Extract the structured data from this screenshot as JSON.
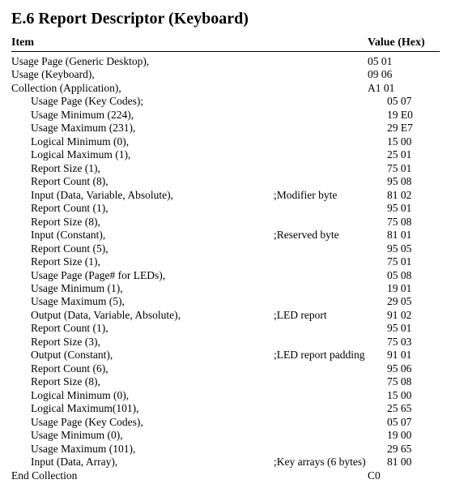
{
  "title": "E.6 Report Descriptor (Keyboard)",
  "header": {
    "item": "Item",
    "value": "Value (Hex)"
  },
  "rows": [
    {
      "indent": 0,
      "item": "Usage Page (Generic Desktop),",
      "comment": "",
      "value": "05 01"
    },
    {
      "indent": 0,
      "item": "Usage (Keyboard),",
      "comment": "",
      "value": "09 06"
    },
    {
      "indent": 0,
      "item": "Collection (Application),",
      "comment": "",
      "value": "A1 01"
    },
    {
      "indent": 2,
      "item": "Usage Page (Key Codes);",
      "comment": "",
      "value": "05 07"
    },
    {
      "indent": 2,
      "item": "Usage Minimum (224),",
      "comment": "",
      "value": "19 E0"
    },
    {
      "indent": 2,
      "item": "Usage Maximum (231),",
      "comment": "",
      "value": "29 E7"
    },
    {
      "indent": 2,
      "item": "Logical Minimum (0),",
      "comment": "",
      "value": "15 00"
    },
    {
      "indent": 2,
      "item": "Logical Maximum (1),",
      "comment": "",
      "value": "25 01"
    },
    {
      "indent": 2,
      "item": "Report Size (1),",
      "comment": "",
      "value": "75 01"
    },
    {
      "indent": 2,
      "item": "Report Count (8),",
      "comment": "",
      "value": "95 08"
    },
    {
      "indent": 2,
      "item": "Input (Data, Variable, Absolute),",
      "comment": ";Modifier byte",
      "value": "81 02"
    },
    {
      "indent": 2,
      "item": "Report Count (1),",
      "comment": "",
      "value": "95 01"
    },
    {
      "indent": 2,
      "item": "Report Size (8),",
      "comment": "",
      "value": "75 08"
    },
    {
      "indent": 2,
      "item": "Input (Constant),",
      "comment": ";Reserved byte",
      "value": "81 01"
    },
    {
      "indent": 2,
      "item": "Report Count (5),",
      "comment": "",
      "value": "95 05"
    },
    {
      "indent": 2,
      "item": "Report Size (1),",
      "comment": "",
      "value": "75 01"
    },
    {
      "indent": 2,
      "item": "Usage Page (Page# for LEDs),",
      "comment": "",
      "value": "05 08"
    },
    {
      "indent": 2,
      "item": "Usage Minimum (1),",
      "comment": "",
      "value": "19 01"
    },
    {
      "indent": 2,
      "item": "Usage Maximum (5),",
      "comment": "",
      "value": "29 05"
    },
    {
      "indent": 2,
      "item": "Output (Data, Variable, Absolute),",
      "comment": ";LED report",
      "value": "91 02"
    },
    {
      "indent": 2,
      "item": "Report Count (1),",
      "comment": "",
      "value": "95 01"
    },
    {
      "indent": 2,
      "item": "Report Size (3),",
      "comment": "",
      "value": "75 03"
    },
    {
      "indent": 2,
      "item": "Output (Constant),",
      "comment": ";LED report padding",
      "value": "91 01"
    },
    {
      "indent": 2,
      "item": "Report Count (6),",
      "comment": "",
      "value": "95 06"
    },
    {
      "indent": 2,
      "item": "Report Size (8),",
      "comment": "",
      "value": "75 08"
    },
    {
      "indent": 2,
      "item": "Logical Minimum (0),",
      "comment": "",
      "value": "15 00"
    },
    {
      "indent": 2,
      "item": "Logical Maximum(101),",
      "comment": "",
      "value": "25 65"
    },
    {
      "indent": 2,
      "item": "Usage Page (Key Codes),",
      "comment": "",
      "value": "05 07"
    },
    {
      "indent": 2,
      "item": "Usage Minimum (0),",
      "comment": "",
      "value": "19 00"
    },
    {
      "indent": 2,
      "item": "Usage Maximum (101),",
      "comment": "",
      "value": "29 65"
    },
    {
      "indent": 2,
      "item": "Input (Data, Array),",
      "comment": ";Key arrays (6 bytes)",
      "value": "81 00"
    },
    {
      "indent": 0,
      "item": "End Collection",
      "comment": "",
      "value": "C0"
    }
  ]
}
